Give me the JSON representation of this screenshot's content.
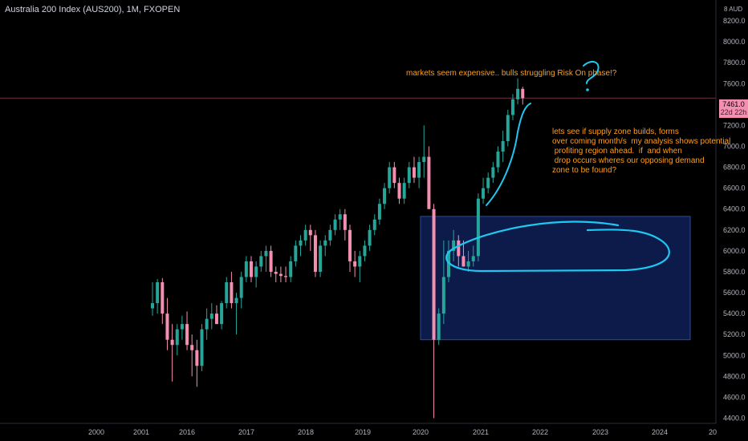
{
  "header": {
    "title": "Australia 200 Index (AUS200), 1M, FXOPEN"
  },
  "currency_label": "8 AUD",
  "price_badge": {
    "price": "7461.0",
    "countdown": "22d 22h"
  },
  "annotations": {
    "note_top": "markets seem expensive.. bulls struggling Risk On phase!?",
    "note_right": "lets see if supply zone builds, forms\nover coming month/s  my analysis shows potential\n profiting region ahead.  if  and when\n drop occurs wheres our opposing demand\nzone to be found?",
    "question_mark": "?"
  },
  "colors": {
    "up": "#26a69a",
    "down": "#f48fb1",
    "zone": "#0d1b4a",
    "zone_border": "#2c4a9a",
    "drawing": "#1ec8f0",
    "note": "#ff9f1a"
  },
  "chart_data": {
    "type": "candlestick",
    "title": "Australia 200 Index (AUS200), 1M, FXOPEN",
    "ylim": [
      4350,
      8400
    ],
    "y_ticks": [
      4400,
      4600,
      4800,
      5000,
      5200,
      5400,
      5600,
      5800,
      6000,
      6200,
      6400,
      6600,
      6800,
      7000,
      7200,
      7400,
      7600,
      7800,
      8000,
      8200
    ],
    "y_tick_labels": [
      "4400.0",
      "4600.0",
      "4800.0",
      "5000.0",
      "5200.0",
      "5400.0",
      "5600.0",
      "5800.0",
      "6000.0",
      "6200.0",
      "6400.0",
      "6600.0",
      "6800.0",
      "7000.0",
      "7200.0",
      "7400.0",
      "7600.0",
      "7800.0",
      "8000.0",
      "8200.0"
    ],
    "x_labels": [
      "2000",
      "2001",
      "2016",
      "2017",
      "2018",
      "2019",
      "2020",
      "2021",
      "2022",
      "2023",
      "2024",
      "20"
    ],
    "current_price_line": 7461,
    "candles": [
      {
        "o": 5450,
        "h": 5700,
        "l": 5380,
        "c": 5500
      },
      {
        "o": 5500,
        "h": 5730,
        "l": 5400,
        "c": 5700
      },
      {
        "o": 5700,
        "h": 5740,
        "l": 5300,
        "c": 5400
      },
      {
        "o": 5400,
        "h": 5550,
        "l": 5050,
        "c": 5150
      },
      {
        "o": 5150,
        "h": 5300,
        "l": 4750,
        "c": 5100
      },
      {
        "o": 5100,
        "h": 5300,
        "l": 5000,
        "c": 5250
      },
      {
        "o": 5250,
        "h": 5380,
        "l": 5150,
        "c": 5300
      },
      {
        "o": 5300,
        "h": 5420,
        "l": 5050,
        "c": 5100
      },
      {
        "o": 5100,
        "h": 5200,
        "l": 4800,
        "c": 5050
      },
      {
        "o": 5050,
        "h": 5150,
        "l": 4700,
        "c": 4900
      },
      {
        "o": 4900,
        "h": 5300,
        "l": 4850,
        "c": 5250
      },
      {
        "o": 5250,
        "h": 5450,
        "l": 5150,
        "c": 5350
      },
      {
        "o": 5350,
        "h": 5500,
        "l": 5250,
        "c": 5400
      },
      {
        "o": 5400,
        "h": 5480,
        "l": 5300,
        "c": 5300
      },
      {
        "o": 5300,
        "h": 5520,
        "l": 5250,
        "c": 5500
      },
      {
        "o": 5500,
        "h": 5750,
        "l": 5450,
        "c": 5700
      },
      {
        "o": 5700,
        "h": 5800,
        "l": 5450,
        "c": 5500
      },
      {
        "o": 5500,
        "h": 5600,
        "l": 5200,
        "c": 5550
      },
      {
        "o": 5550,
        "h": 5800,
        "l": 5450,
        "c": 5750
      },
      {
        "o": 5750,
        "h": 5950,
        "l": 5700,
        "c": 5900
      },
      {
        "o": 5900,
        "h": 5950,
        "l": 5700,
        "c": 5750
      },
      {
        "o": 5750,
        "h": 5900,
        "l": 5650,
        "c": 5850
      },
      {
        "o": 5850,
        "h": 6000,
        "l": 5800,
        "c": 5950
      },
      {
        "o": 5950,
        "h": 6050,
        "l": 5800,
        "c": 6000
      },
      {
        "o": 6000,
        "h": 6050,
        "l": 5750,
        "c": 5800
      },
      {
        "o": 5800,
        "h": 5850,
        "l": 5700,
        "c": 5780
      },
      {
        "o": 5780,
        "h": 5850,
        "l": 5700,
        "c": 5760
      },
      {
        "o": 5760,
        "h": 5850,
        "l": 5700,
        "c": 5750
      },
      {
        "o": 5750,
        "h": 5950,
        "l": 5700,
        "c": 5900
      },
      {
        "o": 5900,
        "h": 6100,
        "l": 5850,
        "c": 6050
      },
      {
        "o": 6050,
        "h": 6150,
        "l": 5950,
        "c": 6100
      },
      {
        "o": 6100,
        "h": 6250,
        "l": 6050,
        "c": 6200
      },
      {
        "o": 6200,
        "h": 6250,
        "l": 6000,
        "c": 6150
      },
      {
        "o": 6150,
        "h": 6200,
        "l": 5750,
        "c": 5800
      },
      {
        "o": 5800,
        "h": 6100,
        "l": 5750,
        "c": 6050
      },
      {
        "o": 6050,
        "h": 6150,
        "l": 5950,
        "c": 6100
      },
      {
        "o": 6100,
        "h": 6250,
        "l": 6050,
        "c": 6200
      },
      {
        "o": 6200,
        "h": 6350,
        "l": 6150,
        "c": 6300
      },
      {
        "o": 6300,
        "h": 6400,
        "l": 6200,
        "c": 6350
      },
      {
        "o": 6350,
        "h": 6400,
        "l": 6100,
        "c": 6200
      },
      {
        "o": 6200,
        "h": 6250,
        "l": 5800,
        "c": 5900
      },
      {
        "o": 5900,
        "h": 6000,
        "l": 5750,
        "c": 5850
      },
      {
        "o": 5850,
        "h": 6000,
        "l": 5700,
        "c": 5950
      },
      {
        "o": 5950,
        "h": 6100,
        "l": 5900,
        "c": 6050
      },
      {
        "o": 6050,
        "h": 6250,
        "l": 6000,
        "c": 6200
      },
      {
        "o": 6200,
        "h": 6350,
        "l": 6150,
        "c": 6300
      },
      {
        "o": 6300,
        "h": 6500,
        "l": 6250,
        "c": 6450
      },
      {
        "o": 6450,
        "h": 6650,
        "l": 6400,
        "c": 6600
      },
      {
        "o": 6600,
        "h": 6850,
        "l": 6550,
        "c": 6800
      },
      {
        "o": 6800,
        "h": 6850,
        "l": 6600,
        "c": 6650
      },
      {
        "o": 6650,
        "h": 6700,
        "l": 6450,
        "c": 6500
      },
      {
        "o": 6500,
        "h": 6700,
        "l": 6450,
        "c": 6650
      },
      {
        "o": 6650,
        "h": 6850,
        "l": 6600,
        "c": 6800
      },
      {
        "o": 6800,
        "h": 6900,
        "l": 6650,
        "c": 6700
      },
      {
        "o": 6700,
        "h": 6900,
        "l": 6600,
        "c": 6850
      },
      {
        "o": 6850,
        "h": 7200,
        "l": 6700,
        "c": 6900
      },
      {
        "o": 6900,
        "h": 7000,
        "l": 6400,
        "c": 6400
      },
      {
        "o": 6400,
        "h": 6450,
        "l": 4400,
        "c": 5150
      },
      {
        "o": 5150,
        "h": 5450,
        "l": 5100,
        "c": 5400
      },
      {
        "o": 5400,
        "h": 6100,
        "l": 5300,
        "c": 5750
      },
      {
        "o": 5750,
        "h": 6100,
        "l": 5700,
        "c": 6000
      },
      {
        "o": 6000,
        "h": 6200,
        "l": 5900,
        "c": 6100
      },
      {
        "o": 6100,
        "h": 6150,
        "l": 5850,
        "c": 5950
      },
      {
        "o": 5950,
        "h": 6100,
        "l": 5850,
        "c": 5850
      },
      {
        "o": 5850,
        "h": 6000,
        "l": 5800,
        "c": 5900
      },
      {
        "o": 5900,
        "h": 6050,
        "l": 5850,
        "c": 5950
      },
      {
        "o": 5950,
        "h": 6550,
        "l": 5900,
        "c": 6500
      },
      {
        "o": 6500,
        "h": 6700,
        "l": 6450,
        "c": 6600
      },
      {
        "o": 6600,
        "h": 6750,
        "l": 6550,
        "c": 6700
      },
      {
        "o": 6700,
        "h": 6850,
        "l": 6650,
        "c": 6800
      },
      {
        "o": 6800,
        "h": 7000,
        "l": 6750,
        "c": 6950
      },
      {
        "o": 6950,
        "h": 7150,
        "l": 6850,
        "c": 7050
      },
      {
        "o": 7050,
        "h": 7350,
        "l": 7000,
        "c": 7300
      },
      {
        "o": 7300,
        "h": 7500,
        "l": 7250,
        "c": 7450
      },
      {
        "o": 7450,
        "h": 7650,
        "l": 7400,
        "c": 7550
      },
      {
        "o": 7550,
        "h": 7570,
        "l": 7400,
        "c": 7461
      }
    ]
  }
}
